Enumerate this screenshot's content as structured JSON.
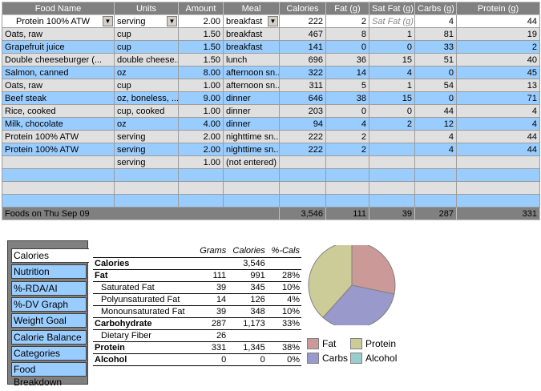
{
  "columns": [
    "Food Name",
    "Units",
    "Amount",
    "Meal",
    "Calories",
    "Fat (g)",
    "Sat Fat (g)",
    "Carbs (g)",
    "Protein (g)"
  ],
  "rows": [
    {
      "food": "Protein 100% ATW",
      "units": "serving",
      "amount": "2.00",
      "meal": "breakfast",
      "cal": "222",
      "fat": "2",
      "sat": "Sat Fat (g)",
      "carbs": "4",
      "protein": "44"
    },
    {
      "food": "Oats, raw",
      "units": "cup",
      "amount": "1.50",
      "meal": "breakfast",
      "cal": "467",
      "fat": "8",
      "sat": "1",
      "carbs": "81",
      "protein": "19"
    },
    {
      "food": "Grapefruit juice",
      "units": "cup",
      "amount": "1.50",
      "meal": "breakfast",
      "cal": "141",
      "fat": "0",
      "sat": "0",
      "carbs": "33",
      "protein": "2"
    },
    {
      "food": "Double cheeseburger (...",
      "units": "double cheese...",
      "amount": "1.50",
      "meal": "lunch",
      "cal": "696",
      "fat": "36",
      "sat": "15",
      "carbs": "51",
      "protein": "40"
    },
    {
      "food": "Salmon, canned",
      "units": "oz",
      "amount": "8.00",
      "meal": "afternoon sn...",
      "cal": "322",
      "fat": "14",
      "sat": "4",
      "carbs": "0",
      "protein": "45"
    },
    {
      "food": "Oats, raw",
      "units": "cup",
      "amount": "1.00",
      "meal": "afternoon sn...",
      "cal": "311",
      "fat": "5",
      "sat": "1",
      "carbs": "54",
      "protein": "13"
    },
    {
      "food": "Beef steak",
      "units": "oz, boneless, ...",
      "amount": "9.00",
      "meal": "dinner",
      "cal": "646",
      "fat": "38",
      "sat": "15",
      "carbs": "0",
      "protein": "71"
    },
    {
      "food": "Rice, cooked",
      "units": "cup, cooked",
      "amount": "1.00",
      "meal": "dinner",
      "cal": "203",
      "fat": "0",
      "sat": "0",
      "carbs": "44",
      "protein": "4"
    },
    {
      "food": "Milk, chocolate",
      "units": "oz",
      "amount": "4.00",
      "meal": "dinner",
      "cal": "94",
      "fat": "4",
      "sat": "2",
      "carbs": "12",
      "protein": "4"
    },
    {
      "food": "Protein 100% ATW",
      "units": "serving",
      "amount": "2.00",
      "meal": "nighttime sn...",
      "cal": "222",
      "fat": "2",
      "sat": "",
      "carbs": "4",
      "protein": "44"
    },
    {
      "food": "Protein 100% ATW",
      "units": "serving",
      "amount": "2.00",
      "meal": "nighttime sn...",
      "cal": "222",
      "fat": "2",
      "sat": "",
      "carbs": "4",
      "protein": "44"
    },
    {
      "food": "",
      "units": "serving",
      "amount": "1.00",
      "meal": "(not entered)",
      "cal": "",
      "fat": "",
      "sat": "",
      "carbs": "",
      "protein": ""
    },
    {
      "food": "",
      "units": "",
      "amount": "",
      "meal": "",
      "cal": "",
      "fat": "",
      "sat": "",
      "carbs": "",
      "protein": ""
    },
    {
      "food": "",
      "units": "",
      "amount": "",
      "meal": "",
      "cal": "",
      "fat": "",
      "sat": "",
      "carbs": "",
      "protein": ""
    },
    {
      "food": "",
      "units": "",
      "amount": "",
      "meal": "",
      "cal": "",
      "fat": "",
      "sat": "",
      "carbs": "",
      "protein": ""
    }
  ],
  "footer": {
    "label": "Foods on Thu Sep 09",
    "cal": "3,546",
    "fat": "111",
    "sat": "39",
    "carbs": "287",
    "protein": "331"
  },
  "tabs": [
    "Calories",
    "Nutrition",
    "%-RDA/AI Graph",
    "%-DV Graph",
    "Weight Goal",
    "Calorie Balance",
    "Categories",
    "Food Breakdown"
  ],
  "summary": {
    "headers": [
      "Grams",
      "Calories",
      "%-Cals"
    ],
    "rows": [
      {
        "label": "Calories",
        "grams": "",
        "cals": "3,546",
        "pct": "",
        "style": "bold"
      },
      {
        "label": "Fat",
        "grams": "111",
        "cals": "991",
        "pct": "28%",
        "style": "bold"
      },
      {
        "label": "Saturated Fat",
        "grams": "39",
        "cals": "345",
        "pct": "10%",
        "style": "ind1"
      },
      {
        "label": "Polyunsaturated Fat",
        "grams": "14",
        "cals": "126",
        "pct": "4%",
        "style": "ind2"
      },
      {
        "label": "Monounsaturated Fat",
        "grams": "39",
        "cals": "348",
        "pct": "10%",
        "style": "ind2"
      },
      {
        "label": "Carbohydrate",
        "grams": "287",
        "cals": "1,173",
        "pct": "33%",
        "style": "bold"
      },
      {
        "label": "Dietary Fiber",
        "grams": "26",
        "cals": "",
        "pct": "",
        "style": "ind1"
      },
      {
        "label": "Protein",
        "grams": "331",
        "cals": "1,345",
        "pct": "38%",
        "style": "bold"
      },
      {
        "label": "Alcohol",
        "grams": "0",
        "cals": "0",
        "pct": "0%",
        "style": "bold"
      }
    ]
  },
  "legend": [
    {
      "name": "Fat",
      "color": "#cc9999"
    },
    {
      "name": "Protein",
      "color": "#cccc99"
    },
    {
      "name": "Carbs",
      "color": "#9999cc"
    },
    {
      "name": "Alcohol",
      "color": "#99cccc"
    }
  ],
  "chart_data": {
    "type": "pie",
    "slices": [
      {
        "name": "Fat",
        "value": 28,
        "color": "#cc9999"
      },
      {
        "name": "Carbs",
        "value": 33,
        "color": "#9999cc"
      },
      {
        "name": "Protein",
        "value": 38,
        "color": "#cccc99"
      },
      {
        "name": "Alcohol",
        "value": 0,
        "color": "#99cccc"
      }
    ]
  },
  "icons": {
    "dropdown": "chevron-down-icon"
  }
}
